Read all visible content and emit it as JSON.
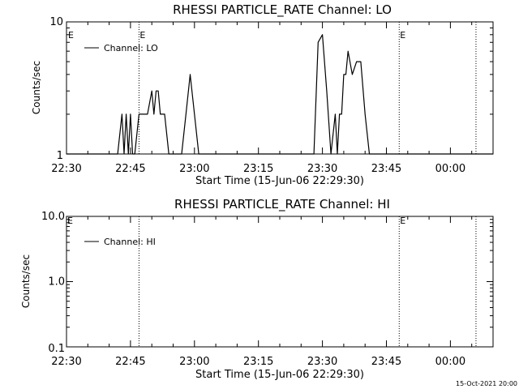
{
  "footer": {
    "timestamp": "15-Oct-2021 20:00"
  },
  "chart_data": [
    {
      "type": "line",
      "title": "RHESSI PARTICLE_RATE Channel: LO",
      "xlabel": "Start Time (15-Jun-06 22:29:30)",
      "ylabel": "Counts/sec",
      "yscale": "log",
      "xlim": [
        "22:30",
        "00:10"
      ],
      "ylim": [
        1,
        10
      ],
      "x_tick_labels": [
        "22:30",
        "22:45",
        "23:00",
        "23:15",
        "23:30",
        "23:45",
        "00:00"
      ],
      "y_tick_labels": [
        {
          "value": 1,
          "label": "1"
        },
        {
          "value": 10,
          "label": "10"
        }
      ],
      "legend": {
        "position": "top-left",
        "entries": [
          "Channel: LO"
        ]
      },
      "markers": [
        {
          "time": "22:47",
          "label": "E"
        },
        {
          "time": "23:48",
          "label": "E"
        },
        {
          "time": "00:06",
          "label": ""
        }
      ],
      "edge_markers": [
        {
          "side": "left",
          "label": "E"
        }
      ],
      "series": [
        {
          "name": "Channel: LO",
          "x": [
            "22:30",
            "22:42",
            "22:43",
            "22:43:30",
            "22:44",
            "22:44:30",
            "22:45",
            "22:45:30",
            "22:46",
            "22:47",
            "22:47:30",
            "22:48",
            "22:49",
            "22:50",
            "22:50:30",
            "22:51",
            "22:51:30",
            "22:52",
            "22:53",
            "22:54",
            "22:55",
            "22:56",
            "22:57",
            "22:58",
            "22:59",
            "23:00",
            "23:01",
            "23:28",
            "23:29",
            "23:30",
            "23:31",
            "23:32",
            "23:33",
            "23:33:30",
            "23:34",
            "23:34:30",
            "23:35",
            "23:35:30",
            "23:36",
            "23:37",
            "23:38",
            "23:39",
            "23:40",
            "23:41",
            "23:42",
            "23:43",
            "00:10"
          ],
          "y": [
            1,
            1,
            2,
            1,
            2,
            1,
            2,
            1,
            1,
            2,
            2,
            2,
            2,
            3,
            2,
            3,
            3,
            2,
            2,
            1,
            1,
            1,
            1,
            2,
            4,
            2,
            1,
            1,
            7,
            8,
            3,
            1,
            2,
            1,
            2,
            2,
            4,
            4,
            6,
            4,
            5,
            5,
            2,
            1,
            1,
            1,
            1
          ]
        }
      ]
    },
    {
      "type": "line",
      "title": "RHESSI PARTICLE_RATE Channel: HI",
      "xlabel": "Start Time (15-Jun-06 22:29:30)",
      "ylabel": "Counts/sec",
      "yscale": "log",
      "xlim": [
        "22:30",
        "00:10"
      ],
      "ylim": [
        0.1,
        10
      ],
      "x_tick_labels": [
        "22:30",
        "22:45",
        "23:00",
        "23:15",
        "23:30",
        "23:45",
        "00:00"
      ],
      "y_tick_labels": [
        {
          "value": 0.1,
          "label": "0.1"
        },
        {
          "value": 1,
          "label": "1.0"
        },
        {
          "value": 10,
          "label": "10.0"
        }
      ],
      "legend": {
        "position": "top-left",
        "entries": [
          "Channel: HI"
        ]
      },
      "markers": [
        {
          "time": "22:47",
          "label": ""
        },
        {
          "time": "23:48",
          "label": "E"
        },
        {
          "time": "00:06",
          "label": ""
        }
      ],
      "edge_markers": [
        {
          "side": "left",
          "label": "E"
        }
      ],
      "series": [
        {
          "name": "Channel: HI",
          "x": [],
          "y": []
        }
      ]
    }
  ]
}
